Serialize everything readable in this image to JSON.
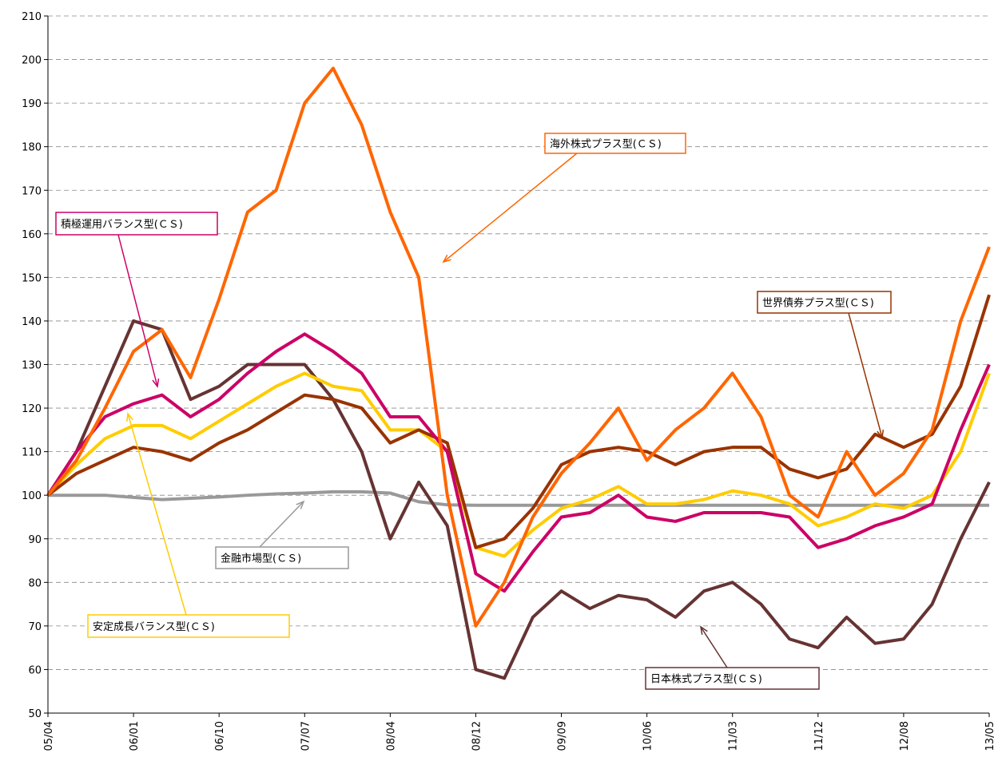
{
  "chart_data": {
    "type": "line",
    "categories": [
      "05/04",
      null,
      null,
      "06/01",
      null,
      null,
      "06/10",
      null,
      null,
      "07/07",
      null,
      null,
      "08/04",
      null,
      null,
      "08/12",
      null,
      null,
      "09/09",
      null,
      null,
      "10/06",
      null,
      null,
      "11/03",
      null,
      null,
      "11/12",
      null,
      null,
      "12/08",
      null,
      null,
      "13/05"
    ],
    "ylim": [
      50,
      210
    ],
    "yticks": [
      50,
      60,
      70,
      80,
      90,
      100,
      110,
      120,
      130,
      140,
      150,
      160,
      170,
      180,
      190,
      200,
      210
    ],
    "grid": true,
    "series": [
      {
        "name": "金融市場型(ＣＳ)",
        "color": "#999999",
        "values": [
          100,
          100,
          100,
          99.5,
          99,
          99.3,
          99.6,
          100,
          100.3,
          100.5,
          100.8,
          100.8,
          100.5,
          98.5,
          97.8,
          97.7,
          97.7,
          97.7,
          97.7,
          97.7,
          97.7,
          97.7,
          97.7,
          97.7,
          97.7,
          97.7,
          97.7,
          97.7,
          97.7,
          97.7,
          97.7,
          97.7,
          97.7,
          97.7
        ]
      },
      {
        "name": "日本株式プラス型(ＣＳ)",
        "color": "#663333",
        "values": [
          100,
          110,
          125,
          140,
          138,
          122,
          125,
          130,
          130,
          130,
          122,
          110,
          90,
          103,
          93,
          60,
          58,
          72,
          78,
          74,
          77,
          76,
          72,
          78,
          80,
          75,
          67,
          65,
          72,
          66,
          67,
          75,
          90,
          103
        ]
      },
      {
        "name": "安定成長バランス型(ＣＳ)",
        "color": "#ffcc00",
        "values": [
          100,
          107,
          113,
          116,
          116,
          113,
          117,
          121,
          125,
          128,
          125,
          124,
          115,
          115,
          110,
          88,
          86,
          92,
          97,
          99,
          102,
          98,
          98,
          99,
          101,
          100,
          98,
          93,
          95,
          98,
          97,
          100,
          110,
          128
        ]
      },
      {
        "name": "世界債券プラス型(ＣＳ)",
        "color": "#993300",
        "values": [
          100,
          105,
          108,
          111,
          110,
          108,
          112,
          115,
          119,
          123,
          122,
          120,
          112,
          115,
          112,
          88,
          90,
          97,
          107,
          110,
          111,
          110,
          107,
          110,
          111,
          111,
          106,
          104,
          106,
          114,
          111,
          114,
          125,
          146
        ]
      },
      {
        "name": "積極運用バランス型(ＣＳ)",
        "color": "#cc0066",
        "values": [
          100,
          110,
          118,
          121,
          123,
          118,
          122,
          128,
          133,
          137,
          133,
          128,
          118,
          118,
          110,
          82,
          78,
          87,
          95,
          96,
          100,
          95,
          94,
          96,
          96,
          96,
          95,
          88,
          90,
          93,
          95,
          98,
          115,
          130
        ]
      },
      {
        "name": "海外株式プラス型(ＣＳ)",
        "color": "#ff6600",
        "values": [
          100,
          108,
          120,
          133,
          138,
          127,
          145,
          165,
          170,
          190,
          198,
          185,
          165,
          150,
          100,
          70,
          80,
          95,
          105,
          112,
          120,
          108,
          115,
          120,
          128,
          118,
          100,
          95,
          110,
          100,
          105,
          115,
          140,
          157
        ]
      }
    ]
  }
}
